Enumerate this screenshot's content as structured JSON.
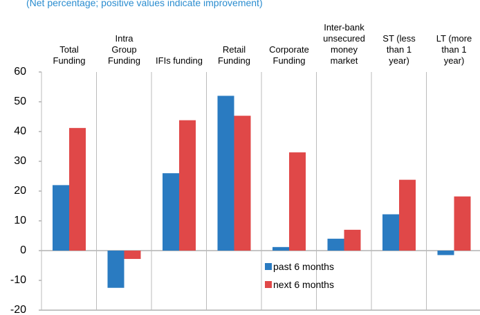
{
  "chart_data": {
    "type": "bar",
    "subtitle": "(Net percentage; positive values indicate improvement)",
    "categories": [
      "Total\nFunding",
      "Intra\nGroup\nFunding",
      "IFIs funding",
      "Retail\nFunding",
      "Corporate\nFunding",
      "Inter-bank\nunsecured\nmoney\nmarket",
      "ST (less\nthan 1\nyear)",
      "LT (more\nthan 1\nyear)"
    ],
    "series": [
      {
        "name": "past 6 months",
        "color": "#2a7bc1",
        "values": [
          22,
          -12.5,
          26,
          52,
          1.2,
          4,
          12.2,
          -1.5
        ]
      },
      {
        "name": "next 6 months",
        "color": "#e04848",
        "values": [
          41.2,
          -2.8,
          43.8,
          45.3,
          33,
          7,
          23.8,
          18.2
        ]
      }
    ],
    "ylim": [
      -20,
      60
    ],
    "yticks": [
      -20,
      -10,
      0,
      10,
      20,
      30,
      40,
      50,
      60
    ]
  }
}
